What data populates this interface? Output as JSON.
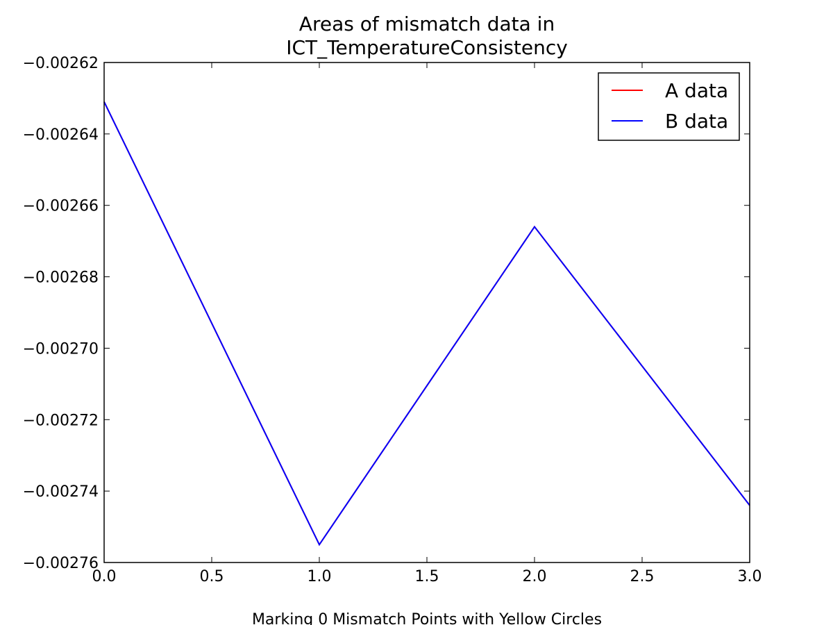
{
  "chart_data": {
    "type": "line",
    "title": [
      "Areas of mismatch data in",
      "ICT_TemperatureConsistency"
    ],
    "xlabel": "Marking 0 Mismatch Points with Yellow Circles",
    "ylabel": "",
    "xlim": [
      0.0,
      3.0
    ],
    "ylim": [
      -0.00276,
      -0.00262
    ],
    "x_ticks": [
      0.0,
      0.5,
      1.0,
      1.5,
      2.0,
      2.5,
      3.0
    ],
    "x_tick_labels": [
      "0.0",
      "0.5",
      "1.0",
      "1.5",
      "2.0",
      "2.5",
      "3.0"
    ],
    "y_ticks": [
      -0.00262,
      -0.00264,
      -0.00266,
      -0.00268,
      -0.0027,
      -0.00272,
      -0.00274,
      -0.00276
    ],
    "y_tick_labels": [
      "−0.00262",
      "−0.00264",
      "−0.00266",
      "−0.00268",
      "−0.00270",
      "−0.00272",
      "−0.00274",
      "−0.00276"
    ],
    "grid": false,
    "legend_position": "top-right",
    "x": [
      0,
      1,
      2,
      3
    ],
    "series": [
      {
        "name": "A data",
        "color": "#ff0000",
        "values": [
          -0.002631,
          -0.002755,
          -0.002666,
          -0.002744
        ]
      },
      {
        "name": "B data",
        "color": "#0000ff",
        "values": [
          -0.002631,
          -0.002755,
          -0.002666,
          -0.002744
        ]
      }
    ]
  }
}
